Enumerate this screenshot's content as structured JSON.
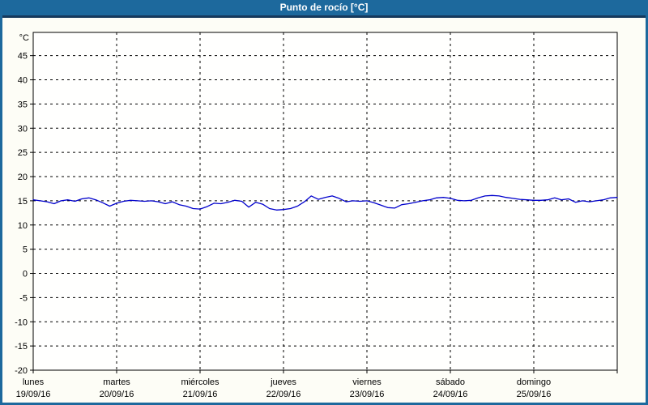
{
  "window": {
    "title": "Punto de rocío [°C]"
  },
  "colors": {
    "frame": "#1d699d",
    "header_bg": "#1d699d",
    "header_separator": "#16395c",
    "page_bg": "#fdfdf6",
    "plot_bg": "#fffffe",
    "plot_border": "#000000",
    "grid": "#000000",
    "axis_text": "#000000",
    "title_text": "#ffffff",
    "line": "#0000cc"
  },
  "chart_data": {
    "type": "line",
    "title": "Punto de rocío [°C]",
    "unit_label": "°C",
    "grid": "dashed",
    "legend_position": "none",
    "ylim": [
      -20,
      49.8
    ],
    "yticks": [
      45,
      40,
      35,
      30,
      25,
      20,
      15,
      10,
      5,
      0,
      -5,
      -10,
      -15,
      -20
    ],
    "x_total_hours": 168,
    "x_days": [
      {
        "name": "lunes",
        "date": "19/09/16"
      },
      {
        "name": "martes",
        "date": "20/09/16"
      },
      {
        "name": "miércoles",
        "date": "21/09/16"
      },
      {
        "name": "jueves",
        "date": "22/09/16"
      },
      {
        "name": "viernes",
        "date": "23/09/16"
      },
      {
        "name": "sábado",
        "date": "24/09/16"
      },
      {
        "name": "domingo",
        "date": "25/09/16"
      }
    ],
    "series": [
      {
        "name": "Punto de rocío",
        "color": "#0000cc",
        "start_hour": 0,
        "interval_hours": 2,
        "values": [
          15.2,
          15.0,
          14.8,
          14.4,
          15.0,
          15.2,
          14.9,
          15.4,
          15.6,
          15.2,
          14.6,
          13.9,
          14.5,
          14.9,
          15.1,
          15.0,
          14.9,
          15.0,
          14.8,
          14.4,
          14.8,
          14.2,
          13.9,
          13.4,
          13.3,
          13.8,
          14.5,
          14.4,
          14.7,
          15.1,
          14.9,
          13.7,
          14.7,
          14.3,
          13.4,
          13.1,
          13.2,
          13.4,
          13.9,
          14.8,
          16.0,
          15.3,
          15.7,
          16.0,
          15.5,
          14.8,
          15.0,
          14.9,
          15.0,
          14.6,
          14.1,
          13.6,
          13.5,
          14.2,
          14.4,
          14.7,
          15.0,
          15.2,
          15.6,
          15.7,
          15.5,
          15.1,
          15.0,
          15.1,
          15.6,
          16.0,
          16.1,
          16.0,
          15.7,
          15.5,
          15.3,
          15.2,
          15.1,
          15.1,
          15.2,
          15.6,
          15.2,
          15.4,
          14.7,
          15.0,
          14.8,
          15.0,
          15.2,
          15.6,
          15.7
        ]
      }
    ]
  }
}
